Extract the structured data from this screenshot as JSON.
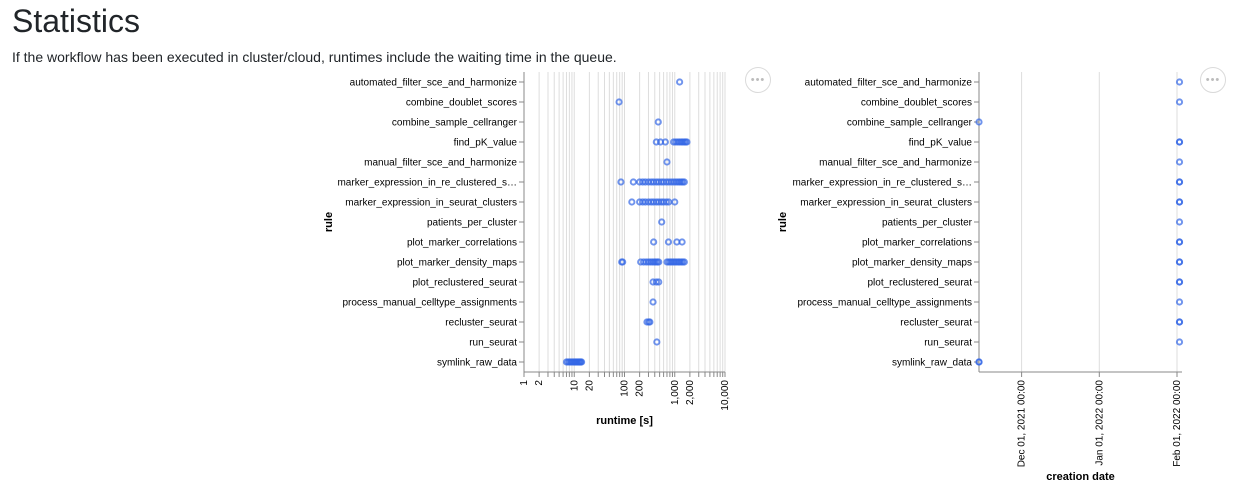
{
  "page": {
    "title": "Statistics",
    "description": "If the workflow has been executed in cluster/cloud, runtimes include the waiting time in the queue."
  },
  "actions_icon_label": "•••",
  "colors": {
    "point_stroke": "#4c78a8",
    "point_stroke_alt": "#3366e6",
    "grid": "#dddddd"
  },
  "chart_data": [
    {
      "type": "scatter",
      "xlabel": "runtime [s]",
      "ylabel": "rule",
      "xscale": "log",
      "xlim": [
        1,
        10000
      ],
      "xticks": [
        "1",
        "2",
        "10",
        "20",
        "100",
        "200",
        "1,000",
        "2,000",
        "10,000"
      ],
      "x_tick_values": [
        1,
        2,
        10,
        20,
        100,
        200,
        1000,
        2000,
        10000
      ],
      "grid": true,
      "categories": [
        "automated_filter_sce_and_harmonize",
        "combine_doublet_scores",
        "combine_sample_cellranger",
        "find_pK_value",
        "manual_filter_sce_and_harmonize",
        "marker_expression_in_re_clustered_s…",
        "marker_expression_in_seurat_clusters",
        "patients_per_cluster",
        "plot_marker_correlations",
        "plot_marker_density_maps",
        "plot_reclustered_seurat",
        "process_manual_celltype_assignments",
        "recluster_seurat",
        "run_seurat",
        "symlink_raw_data"
      ],
      "points": [
        {
          "rule": "automated_filter_sce_and_harmonize",
          "x": [
            1250
          ]
        },
        {
          "rule": "combine_doublet_scores",
          "x": [
            78
          ]
        },
        {
          "rule": "combine_sample_cellranger",
          "x": [
            470
          ]
        },
        {
          "rule": "find_pK_value",
          "x": [
            430,
            520,
            650,
            950,
            1050,
            1150,
            1250,
            1350,
            1450,
            1550,
            1650,
            1750
          ]
        },
        {
          "rule": "manual_filter_sce_and_harmonize",
          "x": [
            700
          ]
        },
        {
          "rule": "marker_expression_in_re_clustered_s…",
          "x": [
            85,
            150,
            200,
            230,
            260,
            300,
            340,
            380,
            430,
            480,
            540,
            600,
            680,
            760,
            850,
            950,
            1050,
            1150,
            1250,
            1350,
            1450,
            1550
          ]
        },
        {
          "rule": "marker_expression_in_seurat_clusters",
          "x": [
            140,
            200,
            230,
            260,
            300,
            340,
            380,
            430,
            480,
            540,
            600,
            680,
            760,
            1000
          ]
        },
        {
          "rule": "patients_per_cluster",
          "x": [
            550
          ]
        },
        {
          "rule": "plot_marker_correlations",
          "x": [
            380,
            750,
            1100,
            1400
          ]
        },
        {
          "rule": "plot_marker_density_maps",
          "x": [
            88,
            92,
            210,
            240,
            270,
            300,
            330,
            360,
            390,
            420,
            450,
            480,
            700,
            760,
            820,
            880,
            950,
            1020,
            1100,
            1180,
            1260,
            1350,
            1450,
            1550
          ]
        },
        {
          "rule": "plot_reclustered_seurat",
          "x": [
            370,
            430,
            480
          ]
        },
        {
          "rule": "process_manual_celltype_assignments",
          "x": [
            370
          ]
        },
        {
          "rule": "recluster_seurat",
          "x": [
            280,
            305,
            320
          ]
        },
        {
          "rule": "run_seurat",
          "x": [
            440
          ]
        },
        {
          "rule": "symlink_raw_data",
          "x": [
            7.0,
            7.5,
            8.0,
            8.5,
            9.0,
            9.5,
            10.0,
            10.5,
            11.0,
            11.5,
            12.0,
            12.5,
            13.0,
            13.5,
            14.0
          ]
        }
      ]
    },
    {
      "type": "scatter",
      "xlabel": "creation date",
      "ylabel": "rule",
      "xscale": "time",
      "xlim": [
        "2021-11-14",
        "2022-02-03"
      ],
      "xticks": [
        "Dec 01, 2021 00:00",
        "Jan 01, 2022 00:00",
        "Feb 01, 2022 00:00"
      ],
      "x_tick_values": [
        "2021-12-01",
        "2022-01-01",
        "2022-02-01"
      ],
      "grid": true,
      "categories": [
        "automated_filter_sce_and_harmonize",
        "combine_doublet_scores",
        "combine_sample_cellranger",
        "find_pK_value",
        "manual_filter_sce_and_harmonize",
        "marker_expression_in_re_clustered_s…",
        "marker_expression_in_seurat_clusters",
        "patients_per_cluster",
        "plot_marker_correlations",
        "plot_marker_density_maps",
        "plot_reclustered_seurat",
        "process_manual_celltype_assignments",
        "recluster_seurat",
        "run_seurat",
        "symlink_raw_data"
      ],
      "points": [
        {
          "rule": "automated_filter_sce_and_harmonize",
          "x": [
            "2022-02-02"
          ]
        },
        {
          "rule": "combine_doublet_scores",
          "x": [
            "2022-02-02"
          ]
        },
        {
          "rule": "combine_sample_cellranger",
          "x": [
            "2021-11-14"
          ]
        },
        {
          "rule": "find_pK_value",
          "x": [
            "2022-02-02",
            "2022-02-02"
          ]
        },
        {
          "rule": "manual_filter_sce_and_harmonize",
          "x": [
            "2022-02-02"
          ]
        },
        {
          "rule": "marker_expression_in_re_clustered_s…",
          "x": [
            "2022-02-02",
            "2022-02-02"
          ]
        },
        {
          "rule": "marker_expression_in_seurat_clusters",
          "x": [
            "2022-02-02",
            "2022-02-02"
          ]
        },
        {
          "rule": "patients_per_cluster",
          "x": [
            "2022-02-02"
          ]
        },
        {
          "rule": "plot_marker_correlations",
          "x": [
            "2022-02-02",
            "2022-02-02"
          ]
        },
        {
          "rule": "plot_marker_density_maps",
          "x": [
            "2022-02-02",
            "2022-02-02"
          ]
        },
        {
          "rule": "plot_reclustered_seurat",
          "x": [
            "2022-02-02",
            "2022-02-02"
          ]
        },
        {
          "rule": "process_manual_celltype_assignments",
          "x": [
            "2022-02-02"
          ]
        },
        {
          "rule": "recluster_seurat",
          "x": [
            "2022-02-02",
            "2022-02-02"
          ]
        },
        {
          "rule": "run_seurat",
          "x": [
            "2022-02-02"
          ]
        },
        {
          "rule": "symlink_raw_data",
          "x": [
            "2021-11-14",
            "2021-11-14"
          ]
        }
      ]
    }
  ]
}
